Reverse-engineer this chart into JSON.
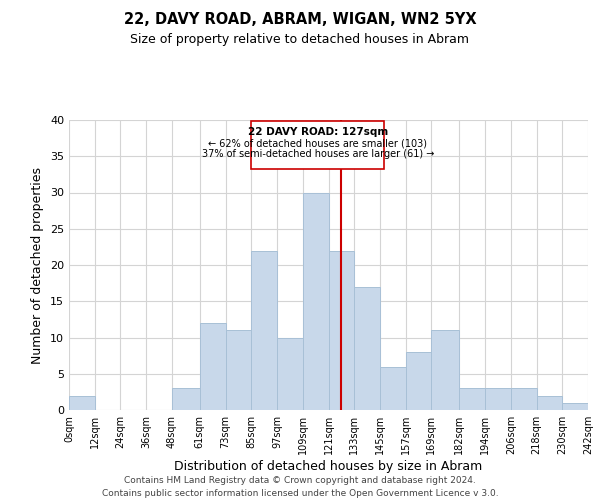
{
  "title": "22, DAVY ROAD, ABRAM, WIGAN, WN2 5YX",
  "subtitle": "Size of property relative to detached houses in Abram",
  "xlabel": "Distribution of detached houses by size in Abram",
  "ylabel": "Number of detached properties",
  "bar_color": "#c8d8ea",
  "bar_edge_color": "#a8c0d6",
  "bins": [
    0,
    12,
    24,
    36,
    48,
    61,
    73,
    85,
    97,
    109,
    121,
    133,
    145,
    157,
    169,
    182,
    194,
    206,
    218,
    230,
    242
  ],
  "bin_labels": [
    "0sqm",
    "12sqm",
    "24sqm",
    "36sqm",
    "48sqm",
    "61sqm",
    "73sqm",
    "85sqm",
    "97sqm",
    "109sqm",
    "121sqm",
    "133sqm",
    "145sqm",
    "157sqm",
    "169sqm",
    "182sqm",
    "194sqm",
    "206sqm",
    "218sqm",
    "230sqm",
    "242sqm"
  ],
  "counts": [
    2,
    0,
    0,
    0,
    3,
    12,
    11,
    22,
    10,
    30,
    22,
    17,
    6,
    8,
    11,
    3,
    3,
    3,
    2,
    1
  ],
  "property_size": 127,
  "annotation_title": "22 DAVY ROAD: 127sqm",
  "annotation_line1": "← 62% of detached houses are smaller (103)",
  "annotation_line2": "37% of semi-detached houses are larger (61) →",
  "vline_color": "#cc0000",
  "ylim": [
    0,
    40
  ],
  "yticks": [
    0,
    5,
    10,
    15,
    20,
    25,
    30,
    35,
    40
  ],
  "footer1": "Contains HM Land Registry data © Crown copyright and database right 2024.",
  "footer2": "Contains public sector information licensed under the Open Government Licence v 3.0.",
  "background_color": "#ffffff",
  "grid_color": "#d4d4d4"
}
